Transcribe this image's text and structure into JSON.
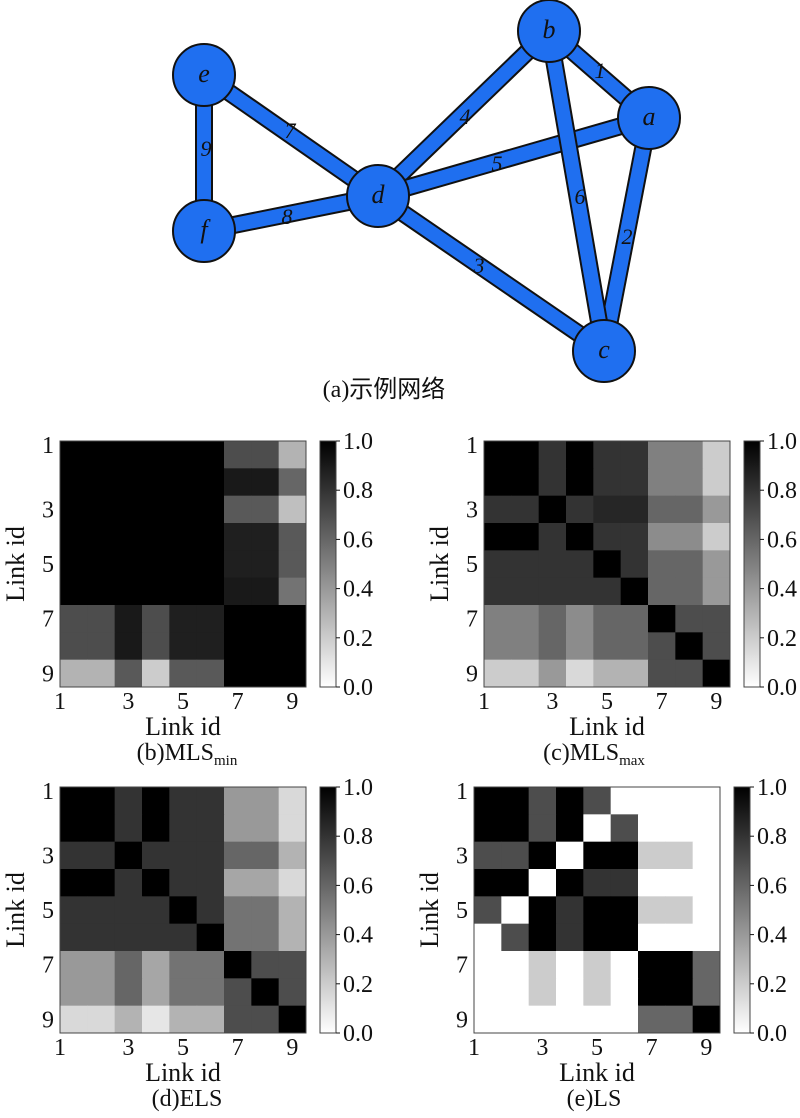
{
  "network": {
    "caption": "(a)示例网络",
    "node_color": "#1f6ff0",
    "nodes": [
      {
        "id": "e",
        "label": "e"
      },
      {
        "id": "f",
        "label": "f"
      },
      {
        "id": "d",
        "label": "d"
      },
      {
        "id": "b",
        "label": "b"
      },
      {
        "id": "a",
        "label": "a"
      },
      {
        "id": "c",
        "label": "c"
      }
    ],
    "edges": [
      {
        "from": "b",
        "to": "a",
        "label": "1"
      },
      {
        "from": "a",
        "to": "c",
        "label": "2"
      },
      {
        "from": "d",
        "to": "c",
        "label": "3"
      },
      {
        "from": "d",
        "to": "b",
        "label": "4"
      },
      {
        "from": "d",
        "to": "a",
        "label": "5"
      },
      {
        "from": "b",
        "to": "c",
        "label": "6"
      },
      {
        "from": "e",
        "to": "d",
        "label": "7"
      },
      {
        "from": "f",
        "to": "d",
        "label": "8"
      },
      {
        "from": "e",
        "to": "f",
        "label": "9"
      }
    ]
  },
  "chart_data": [
    {
      "type": "heatmap",
      "id": "b",
      "caption_main": "(b)MLS",
      "caption_sub": "min",
      "xlabel": "Link id",
      "ylabel": "Link id",
      "xticks": [
        "1",
        "3",
        "5",
        "7",
        "9"
      ],
      "yticks": [
        "1",
        "3",
        "5",
        "7",
        "9"
      ],
      "colorbar": {
        "ticks": [
          "1.0",
          "0.8",
          "0.6",
          "0.4",
          "0.2",
          "0.0"
        ],
        "range": [
          0,
          1
        ],
        "colormap": "gray_r"
      },
      "matrix": [
        [
          1,
          1,
          1,
          1,
          1,
          1,
          0.7,
          0.7,
          0.3
        ],
        [
          1,
          1,
          1,
          1,
          1,
          1,
          0.9,
          0.9,
          0.6
        ],
        [
          1,
          1,
          1,
          1,
          1,
          1,
          0.65,
          0.65,
          0.25
        ],
        [
          1,
          1,
          1,
          1,
          1,
          1,
          0.88,
          0.88,
          0.65
        ],
        [
          1,
          1,
          1,
          1,
          1,
          1,
          0.88,
          0.88,
          0.65
        ],
        [
          1,
          1,
          1,
          1,
          1,
          1,
          0.9,
          0.9,
          0.55
        ],
        [
          0.7,
          0.7,
          0.9,
          0.7,
          0.88,
          0.88,
          1,
          1,
          1
        ],
        [
          0.7,
          0.7,
          0.9,
          0.7,
          0.88,
          0.88,
          1,
          1,
          1
        ],
        [
          0.3,
          0.3,
          0.65,
          0.2,
          0.65,
          0.65,
          1,
          1,
          1
        ]
      ]
    },
    {
      "type": "heatmap",
      "id": "c",
      "caption_main": "(c)MLS",
      "caption_sub": "max",
      "xlabel": "Link id",
      "ylabel": "Link id",
      "xticks": [
        "1",
        "3",
        "5",
        "7",
        "9"
      ],
      "yticks": [
        "1",
        "3",
        "5",
        "7",
        "9"
      ],
      "colorbar": {
        "ticks": [
          "1.0",
          "0.8",
          "0.6",
          "0.4",
          "0.2",
          "0.0"
        ],
        "range": [
          0,
          1
        ],
        "colormap": "gray_r"
      },
      "matrix": [
        [
          1,
          1,
          0.8,
          1,
          0.8,
          0.8,
          0.5,
          0.5,
          0.2
        ],
        [
          1,
          1,
          0.8,
          1,
          0.8,
          0.8,
          0.5,
          0.5,
          0.2
        ],
        [
          0.8,
          0.8,
          1,
          0.8,
          0.85,
          0.85,
          0.6,
          0.6,
          0.4
        ],
        [
          1,
          1,
          0.8,
          1,
          0.8,
          0.8,
          0.45,
          0.45,
          0.2
        ],
        [
          0.8,
          0.8,
          0.8,
          0.8,
          1,
          0.8,
          0.6,
          0.6,
          0.4
        ],
        [
          0.8,
          0.8,
          0.8,
          0.8,
          0.8,
          1,
          0.6,
          0.6,
          0.4
        ],
        [
          0.5,
          0.5,
          0.6,
          0.45,
          0.6,
          0.6,
          1,
          0.7,
          0.7
        ],
        [
          0.5,
          0.5,
          0.6,
          0.45,
          0.6,
          0.6,
          0.7,
          1,
          0.7
        ],
        [
          0.2,
          0.2,
          0.4,
          0.15,
          0.3,
          0.3,
          0.7,
          0.7,
          1
        ]
      ]
    },
    {
      "type": "heatmap",
      "id": "d",
      "caption_main": "(d)ELS",
      "caption_sub": "",
      "xlabel": "Link id",
      "ylabel": "Link id",
      "xticks": [
        "1",
        "3",
        "5",
        "7",
        "9"
      ],
      "yticks": [
        "1",
        "3",
        "5",
        "7",
        "9"
      ],
      "colorbar": {
        "ticks": [
          "1.0",
          "0.8",
          "0.6",
          "0.4",
          "0.2",
          "0.0"
        ],
        "range": [
          0,
          1
        ],
        "colormap": "gray_r"
      },
      "matrix": [
        [
          1,
          1,
          0.8,
          1,
          0.8,
          0.8,
          0.4,
          0.4,
          0.15
        ],
        [
          1,
          1,
          0.8,
          1,
          0.8,
          0.8,
          0.4,
          0.4,
          0.15
        ],
        [
          0.8,
          0.8,
          1,
          0.8,
          0.8,
          0.8,
          0.6,
          0.6,
          0.3
        ],
        [
          1,
          1,
          0.8,
          1,
          0.8,
          0.8,
          0.35,
          0.35,
          0.15
        ],
        [
          0.8,
          0.8,
          0.8,
          0.8,
          1,
          0.8,
          0.55,
          0.55,
          0.3
        ],
        [
          0.8,
          0.8,
          0.8,
          0.8,
          0.8,
          1,
          0.55,
          0.55,
          0.3
        ],
        [
          0.4,
          0.4,
          0.6,
          0.35,
          0.55,
          0.55,
          1,
          0.7,
          0.7
        ],
        [
          0.4,
          0.4,
          0.6,
          0.35,
          0.55,
          0.55,
          0.7,
          1,
          0.7
        ],
        [
          0.15,
          0.15,
          0.3,
          0.1,
          0.3,
          0.3,
          0.7,
          0.7,
          1
        ]
      ]
    },
    {
      "type": "heatmap",
      "id": "e",
      "caption_main": "(e)LS",
      "caption_sub": "",
      "xlabel": "Link id",
      "ylabel": "Link id",
      "xticks": [
        "1",
        "3",
        "5",
        "7",
        "9"
      ],
      "yticks": [
        "1",
        "3",
        "5",
        "7",
        "9"
      ],
      "colorbar": {
        "ticks": [
          "1.0",
          "0.8",
          "0.6",
          "0.4",
          "0.2",
          "0.0"
        ],
        "range": [
          0,
          1
        ],
        "colormap": "gray_r"
      },
      "matrix": [
        [
          1,
          1,
          0.7,
          1,
          0.7,
          0,
          0,
          0,
          0
        ],
        [
          1,
          1,
          0.7,
          1,
          0,
          0.7,
          0,
          0,
          0
        ],
        [
          0.7,
          0.7,
          1,
          0,
          1,
          1,
          0.2,
          0.2,
          0
        ],
        [
          1,
          1,
          0,
          1,
          0.8,
          0.8,
          0,
          0,
          0
        ],
        [
          0.7,
          0,
          1,
          0.8,
          1,
          1,
          0.2,
          0.2,
          0
        ],
        [
          0,
          0.7,
          1,
          0.8,
          1,
          1,
          0,
          0,
          0
        ],
        [
          0,
          0,
          0.2,
          0,
          0.2,
          0,
          1,
          1,
          0.6
        ],
        [
          0,
          0,
          0.2,
          0,
          0.2,
          0,
          1,
          1,
          0.6
        ],
        [
          0,
          0,
          0,
          0,
          0,
          0,
          0.6,
          0.6,
          1
        ]
      ]
    }
  ]
}
